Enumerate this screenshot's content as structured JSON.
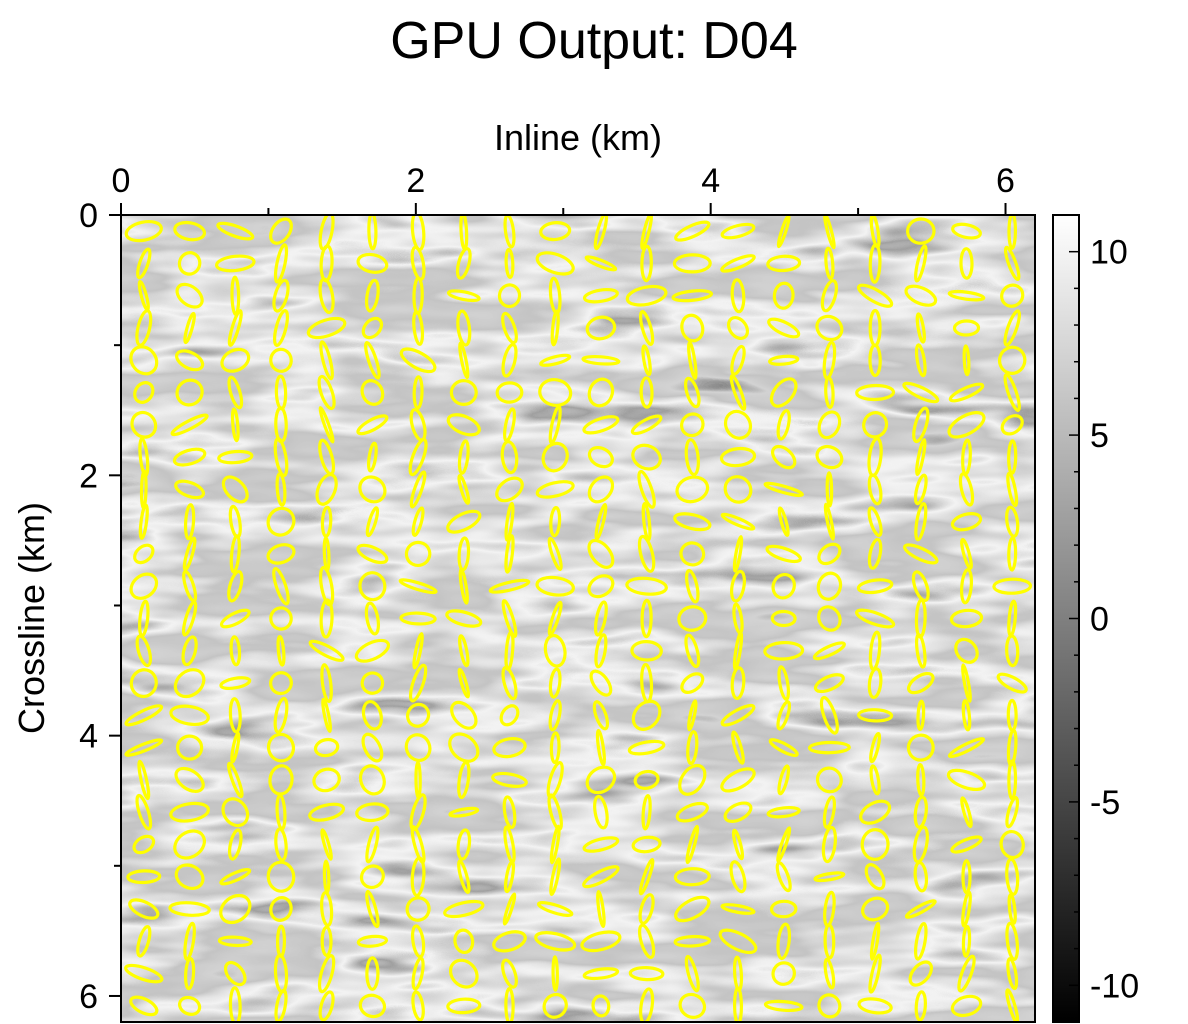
{
  "chart_data": {
    "type": "heatmap",
    "title": "GPU Output: D04",
    "xlabel": "Inline (km)",
    "ylabel": "Crossline (km)",
    "xlim": [
      0,
      6.2
    ],
    "ylim": [
      0,
      6.2
    ],
    "x_ticks": [
      0,
      2,
      4,
      6
    ],
    "y_ticks": [
      0,
      2,
      4,
      6
    ],
    "x_axis_position": "top",
    "y_axis_inverted": true,
    "colorbar": {
      "range": [
        -11,
        11
      ],
      "ticks": [
        10,
        5,
        0,
        -5,
        -10
      ],
      "colormap": "grayscale",
      "low_color": "#000000",
      "high_color": "#ffffff"
    },
    "overlay": {
      "type": "ellipses",
      "color": "#ffff00",
      "grid_columns": 20,
      "grid_rows": 25
    }
  }
}
